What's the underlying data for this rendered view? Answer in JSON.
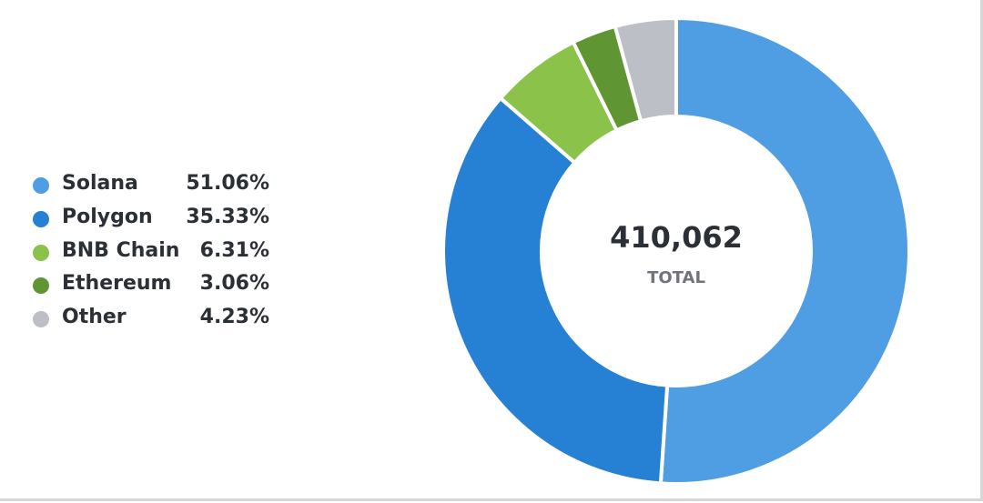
{
  "chart_data": {
    "type": "pie",
    "style": "donut",
    "categories": [
      "Solana",
      "Polygon",
      "BNB Chain",
      "Ethereum",
      "Other"
    ],
    "values": [
      51.06,
      35.33,
      6.31,
      3.06,
      4.23
    ],
    "value_labels": [
      "51.06%",
      "35.33%",
      "6.31%",
      "3.06%",
      "4.23%"
    ],
    "colors": [
      "#4f9de3",
      "#2680d4",
      "#8bc34a",
      "#5f9533",
      "#bdbfc6"
    ],
    "center_value": "410,062",
    "center_label": "TOTAL",
    "legend_position": "left"
  }
}
